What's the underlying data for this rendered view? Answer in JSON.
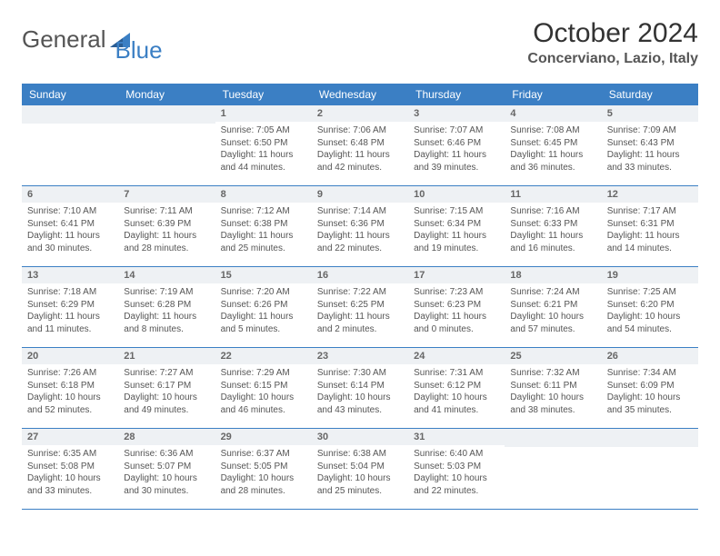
{
  "brand": {
    "word1": "General",
    "word2": "Blue"
  },
  "title": "October 2024",
  "location": "Concerviano, Lazio, Italy",
  "colors": {
    "header_bg": "#3b7fc4",
    "header_text": "#ffffff",
    "daynum_bg": "#eef1f4",
    "daynum_text": "#666666",
    "body_text": "#555555",
    "row_border": "#3b7fc4",
    "background": "#ffffff"
  },
  "typography": {
    "title_fontsize": 30,
    "location_fontsize": 16,
    "header_fontsize": 12,
    "daynum_fontsize": 11,
    "cell_fontsize": 10
  },
  "day_headers": [
    "Sunday",
    "Monday",
    "Tuesday",
    "Wednesday",
    "Thursday",
    "Friday",
    "Saturday"
  ],
  "weeks": [
    [
      null,
      null,
      {
        "n": "1",
        "sunrise": "7:05 AM",
        "sunset": "6:50 PM",
        "daylight": "11 hours and 44 minutes."
      },
      {
        "n": "2",
        "sunrise": "7:06 AM",
        "sunset": "6:48 PM",
        "daylight": "11 hours and 42 minutes."
      },
      {
        "n": "3",
        "sunrise": "7:07 AM",
        "sunset": "6:46 PM",
        "daylight": "11 hours and 39 minutes."
      },
      {
        "n": "4",
        "sunrise": "7:08 AM",
        "sunset": "6:45 PM",
        "daylight": "11 hours and 36 minutes."
      },
      {
        "n": "5",
        "sunrise": "7:09 AM",
        "sunset": "6:43 PM",
        "daylight": "11 hours and 33 minutes."
      }
    ],
    [
      {
        "n": "6",
        "sunrise": "7:10 AM",
        "sunset": "6:41 PM",
        "daylight": "11 hours and 30 minutes."
      },
      {
        "n": "7",
        "sunrise": "7:11 AM",
        "sunset": "6:39 PM",
        "daylight": "11 hours and 28 minutes."
      },
      {
        "n": "8",
        "sunrise": "7:12 AM",
        "sunset": "6:38 PM",
        "daylight": "11 hours and 25 minutes."
      },
      {
        "n": "9",
        "sunrise": "7:14 AM",
        "sunset": "6:36 PM",
        "daylight": "11 hours and 22 minutes."
      },
      {
        "n": "10",
        "sunrise": "7:15 AM",
        "sunset": "6:34 PM",
        "daylight": "11 hours and 19 minutes."
      },
      {
        "n": "11",
        "sunrise": "7:16 AM",
        "sunset": "6:33 PM",
        "daylight": "11 hours and 16 minutes."
      },
      {
        "n": "12",
        "sunrise": "7:17 AM",
        "sunset": "6:31 PM",
        "daylight": "11 hours and 14 minutes."
      }
    ],
    [
      {
        "n": "13",
        "sunrise": "7:18 AM",
        "sunset": "6:29 PM",
        "daylight": "11 hours and 11 minutes."
      },
      {
        "n": "14",
        "sunrise": "7:19 AM",
        "sunset": "6:28 PM",
        "daylight": "11 hours and 8 minutes."
      },
      {
        "n": "15",
        "sunrise": "7:20 AM",
        "sunset": "6:26 PM",
        "daylight": "11 hours and 5 minutes."
      },
      {
        "n": "16",
        "sunrise": "7:22 AM",
        "sunset": "6:25 PM",
        "daylight": "11 hours and 2 minutes."
      },
      {
        "n": "17",
        "sunrise": "7:23 AM",
        "sunset": "6:23 PM",
        "daylight": "11 hours and 0 minutes."
      },
      {
        "n": "18",
        "sunrise": "7:24 AM",
        "sunset": "6:21 PM",
        "daylight": "10 hours and 57 minutes."
      },
      {
        "n": "19",
        "sunrise": "7:25 AM",
        "sunset": "6:20 PM",
        "daylight": "10 hours and 54 minutes."
      }
    ],
    [
      {
        "n": "20",
        "sunrise": "7:26 AM",
        "sunset": "6:18 PM",
        "daylight": "10 hours and 52 minutes."
      },
      {
        "n": "21",
        "sunrise": "7:27 AM",
        "sunset": "6:17 PM",
        "daylight": "10 hours and 49 minutes."
      },
      {
        "n": "22",
        "sunrise": "7:29 AM",
        "sunset": "6:15 PM",
        "daylight": "10 hours and 46 minutes."
      },
      {
        "n": "23",
        "sunrise": "7:30 AM",
        "sunset": "6:14 PM",
        "daylight": "10 hours and 43 minutes."
      },
      {
        "n": "24",
        "sunrise": "7:31 AM",
        "sunset": "6:12 PM",
        "daylight": "10 hours and 41 minutes."
      },
      {
        "n": "25",
        "sunrise": "7:32 AM",
        "sunset": "6:11 PM",
        "daylight": "10 hours and 38 minutes."
      },
      {
        "n": "26",
        "sunrise": "7:34 AM",
        "sunset": "6:09 PM",
        "daylight": "10 hours and 35 minutes."
      }
    ],
    [
      {
        "n": "27",
        "sunrise": "6:35 AM",
        "sunset": "5:08 PM",
        "daylight": "10 hours and 33 minutes."
      },
      {
        "n": "28",
        "sunrise": "6:36 AM",
        "sunset": "5:07 PM",
        "daylight": "10 hours and 30 minutes."
      },
      {
        "n": "29",
        "sunrise": "6:37 AM",
        "sunset": "5:05 PM",
        "daylight": "10 hours and 28 minutes."
      },
      {
        "n": "30",
        "sunrise": "6:38 AM",
        "sunset": "5:04 PM",
        "daylight": "10 hours and 25 minutes."
      },
      {
        "n": "31",
        "sunrise": "6:40 AM",
        "sunset": "5:03 PM",
        "daylight": "10 hours and 22 minutes."
      },
      null,
      null
    ]
  ],
  "labels": {
    "sunrise": "Sunrise:",
    "sunset": "Sunset:",
    "daylight": "Daylight:"
  }
}
